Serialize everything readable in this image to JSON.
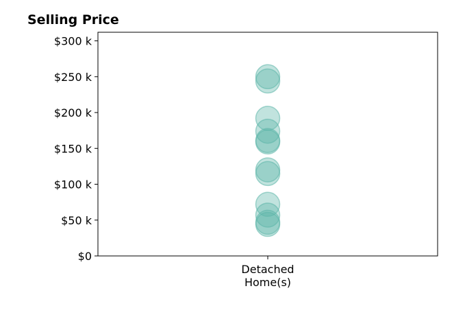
{
  "chart_data": {
    "type": "scatter",
    "title": "Selling Price",
    "xlabel": "",
    "ylabel": "",
    "categories": [
      "Detached\nHome(s)"
    ],
    "y_ticks": [
      "$0",
      "$50 k",
      "$100 k",
      "$150 k",
      "$200 k",
      "$250 k",
      "$300 k"
    ],
    "y_tick_values": [
      0,
      50000,
      100000,
      150000,
      200000,
      250000,
      300000
    ],
    "ylim": [
      0,
      312000
    ],
    "grid": false,
    "point_color": "#5bb5a8",
    "series": [
      {
        "category": "Detached\nHome(s)",
        "values": [
          250000,
          244000,
          192000,
          174000,
          161000,
          159000,
          120000,
          115000,
          72000,
          57000,
          47000,
          44000
        ]
      }
    ]
  }
}
